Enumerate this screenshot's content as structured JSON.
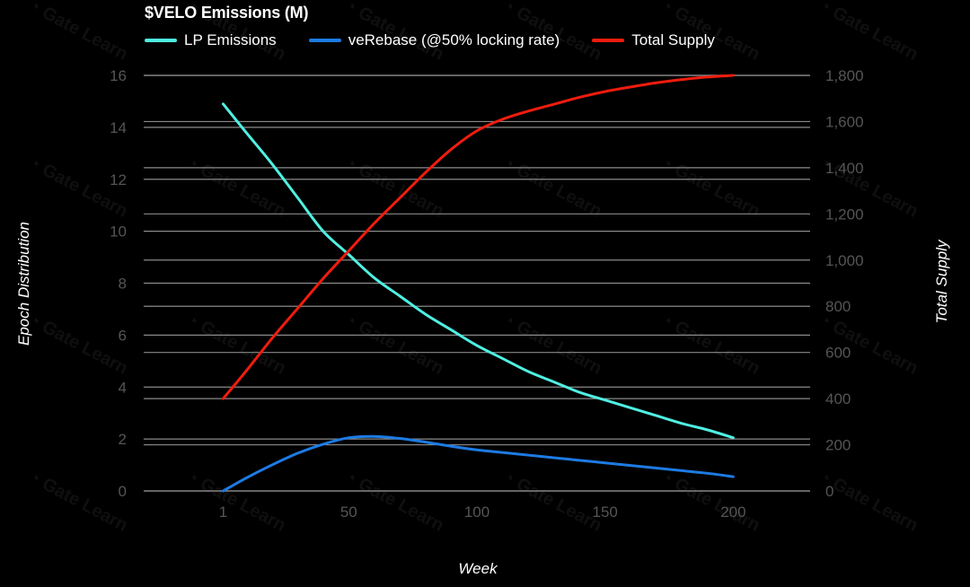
{
  "chart_data": {
    "type": "line",
    "title": "$VELO Emissions (M)",
    "xlabel": "Week",
    "ylabel": "Epoch Distribution",
    "y2label": "Total Supply",
    "xlim": [
      -30,
      230
    ],
    "ylim": [
      0,
      16
    ],
    "y2lim": [
      0,
      1800
    ],
    "x_ticks": [
      1,
      50,
      100,
      150,
      200
    ],
    "y_ticks": [
      0,
      2,
      4,
      6,
      8,
      10,
      12,
      14,
      16
    ],
    "y2_ticks": [
      "0",
      "200",
      "400",
      "600",
      "800",
      "1,000",
      "1,200",
      "1,400",
      "1,600",
      "1,800"
    ],
    "legend_position": "top-left",
    "grid": true,
    "series": [
      {
        "name": "LP Emissions",
        "axis": "left",
        "color": "#4ff0e2",
        "x": [
          1,
          10,
          20,
          30,
          40,
          50,
          60,
          70,
          80,
          90,
          100,
          110,
          120,
          130,
          140,
          150,
          160,
          170,
          180,
          190,
          200
        ],
        "y": [
          14.9,
          13.8,
          12.6,
          11.3,
          10.0,
          9.1,
          8.2,
          7.5,
          6.8,
          6.2,
          5.6,
          5.1,
          4.6,
          4.2,
          3.8,
          3.5,
          3.2,
          2.9,
          2.6,
          2.35,
          2.05
        ]
      },
      {
        "name": "veRebase (@50% locking rate)",
        "axis": "left",
        "color": "#1d7be3",
        "x": [
          1,
          10,
          20,
          30,
          40,
          50,
          60,
          70,
          80,
          90,
          100,
          110,
          120,
          130,
          140,
          150,
          160,
          170,
          180,
          190,
          200
        ],
        "y": [
          0.0,
          0.5,
          1.0,
          1.45,
          1.8,
          2.05,
          2.1,
          2.02,
          1.88,
          1.72,
          1.58,
          1.48,
          1.38,
          1.28,
          1.18,
          1.08,
          0.98,
          0.88,
          0.78,
          0.68,
          0.55
        ]
      },
      {
        "name": "Total Supply",
        "axis": "right",
        "color": "#f01c0e",
        "x": [
          1,
          10,
          20,
          30,
          40,
          50,
          60,
          70,
          80,
          90,
          100,
          110,
          120,
          130,
          140,
          150,
          160,
          170,
          180,
          190,
          200
        ],
        "y": [
          400,
          520,
          660,
          790,
          920,
          1040,
          1160,
          1270,
          1380,
          1480,
          1560,
          1610,
          1645,
          1675,
          1705,
          1730,
          1750,
          1768,
          1782,
          1793,
          1800
        ]
      }
    ]
  },
  "watermark": "Gate Learn"
}
